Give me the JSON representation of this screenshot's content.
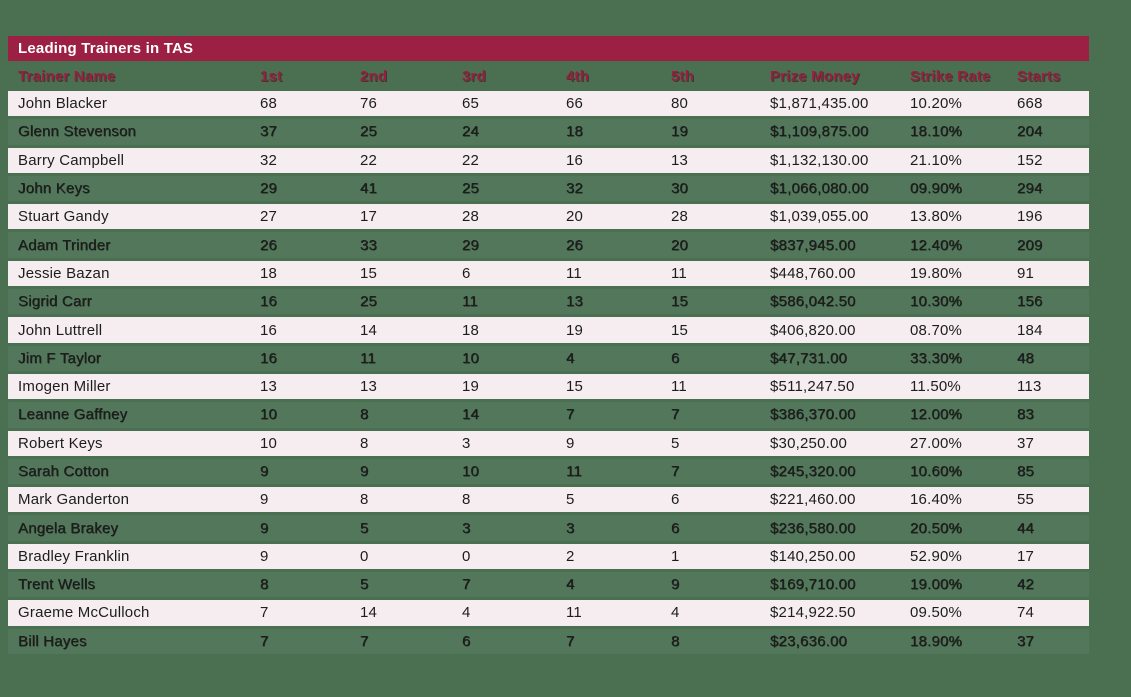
{
  "title": "Leading Trainers in TAS",
  "colors": {
    "page_background": "#4A7051",
    "title_bar": "#9C2044",
    "title_text": "#FFFFFF",
    "header_text": "#9B1D40",
    "row_light": "#F6EDF0",
    "body_text": "#1D1D1D"
  },
  "table": {
    "columns": [
      "Trainer Name",
      "1st",
      "2nd",
      "3rd",
      "4th",
      "5th",
      "Prize Money",
      "Strike Rate",
      "Starts"
    ],
    "rows": [
      [
        "John Blacker",
        "68",
        "76",
        "65",
        "66",
        "80",
        "$1,871,435.00",
        "10.20%",
        "668"
      ],
      [
        "Glenn Stevenson",
        "37",
        "25",
        "24",
        "18",
        "19",
        "$1,109,875.00",
        "18.10%",
        "204"
      ],
      [
        "Barry Campbell",
        "32",
        "22",
        "22",
        "16",
        "13",
        "$1,132,130.00",
        "21.10%",
        "152"
      ],
      [
        "John Keys",
        "29",
        "41",
        "25",
        "32",
        "30",
        "$1,066,080.00",
        "09.90%",
        "294"
      ],
      [
        "Stuart Gandy",
        "27",
        "17",
        "28",
        "20",
        "28",
        "$1,039,055.00",
        "13.80%",
        "196"
      ],
      [
        "Adam Trinder",
        "26",
        "33",
        "29",
        "26",
        "20",
        "$837,945.00",
        "12.40%",
        "209"
      ],
      [
        "Jessie Bazan",
        "18",
        "15",
        "6",
        "11",
        "11",
        "$448,760.00",
        "19.80%",
        "91"
      ],
      [
        "Sigrid Carr",
        "16",
        "25",
        "11",
        "13",
        "15",
        "$586,042.50",
        "10.30%",
        "156"
      ],
      [
        "John Luttrell",
        "16",
        "14",
        "18",
        "19",
        "15",
        "$406,820.00",
        "08.70%",
        "184"
      ],
      [
        "Jim F Taylor",
        "16",
        "11",
        "10",
        "4",
        "6",
        "$47,731.00",
        "33.30%",
        "48"
      ],
      [
        "Imogen Miller",
        "13",
        "13",
        "19",
        "15",
        "11",
        "$511,247.50",
        "11.50%",
        "113"
      ],
      [
        "Leanne Gaffney",
        "10",
        "8",
        "14",
        "7",
        "7",
        "$386,370.00",
        "12.00%",
        "83"
      ],
      [
        "Robert Keys",
        "10",
        "8",
        "3",
        "9",
        "5",
        "$30,250.00",
        "27.00%",
        "37"
      ],
      [
        "Sarah Cotton",
        "9",
        "9",
        "10",
        "11",
        "7",
        "$245,320.00",
        "10.60%",
        "85"
      ],
      [
        "Mark Ganderton",
        "9",
        "8",
        "8",
        "5",
        "6",
        "$221,460.00",
        "16.40%",
        "55"
      ],
      [
        "Angela Brakey",
        "9",
        "5",
        "3",
        "3",
        "6",
        "$236,580.00",
        "20.50%",
        "44"
      ],
      [
        "Bradley Franklin",
        "9",
        "0",
        "0",
        "2",
        "1",
        "$140,250.00",
        "52.90%",
        "17"
      ],
      [
        "Trent Wells",
        "8",
        "5",
        "7",
        "4",
        "9",
        "$169,710.00",
        "19.00%",
        "42"
      ],
      [
        "Graeme McCulloch",
        "7",
        "14",
        "4",
        "11",
        "4",
        "$214,922.50",
        "09.50%",
        "74"
      ],
      [
        "Bill Hayes",
        "7",
        "7",
        "6",
        "7",
        "8",
        "$23,636.00",
        "18.90%",
        "37"
      ]
    ]
  }
}
